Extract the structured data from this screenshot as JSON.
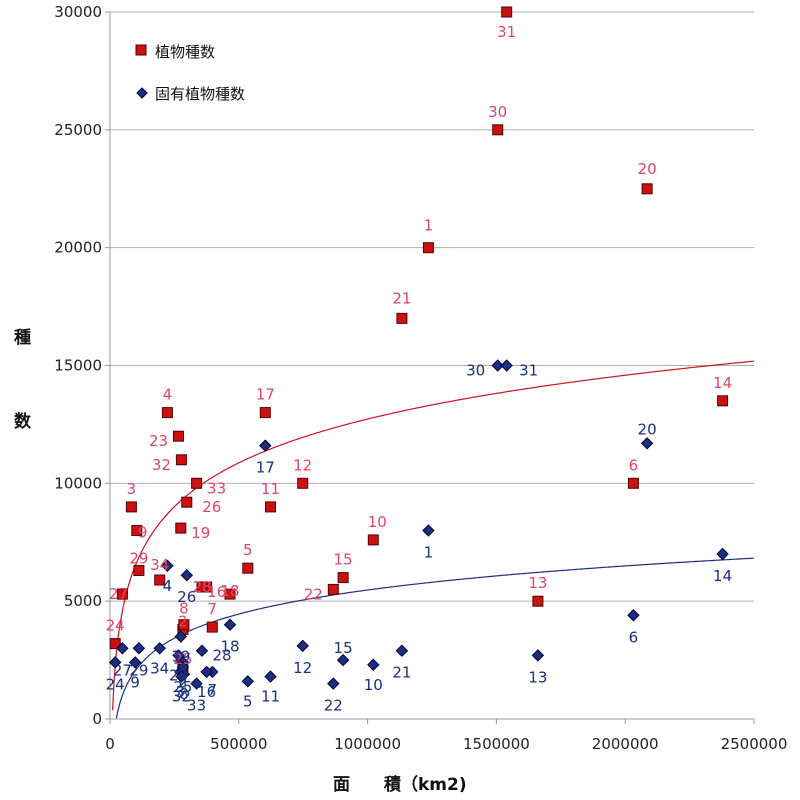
{
  "chart_data": {
    "type": "scatter",
    "xlabel": "面　　積（km2)",
    "ylabel": "種数",
    "xlim": [
      0,
      2500000
    ],
    "ylim": [
      0,
      30000
    ],
    "x_ticks": [
      0,
      500000,
      1000000,
      1500000,
      2000000,
      2500000
    ],
    "y_ticks": [
      0,
      5000,
      10000,
      15000,
      20000,
      25000,
      30000
    ],
    "x_tick_labels": [
      "0",
      "500000",
      "1000000",
      "1500000",
      "2000000",
      "2500000"
    ],
    "y_tick_labels": [
      "0",
      "5000",
      "10000",
      "15000",
      "20000",
      "25000",
      "30000"
    ],
    "grid": "horizontal",
    "legend_position": "top-left",
    "series": [
      {
        "name": "植物種数",
        "marker": "square",
        "color": "#cc1111",
        "label_color": "#e0456a",
        "points": [
          {
            "label": "1",
            "x": 1236000,
            "y": 20000
          },
          {
            "label": "2",
            "x": 283000,
            "y": 3800
          },
          {
            "label": "3",
            "x": 83000,
            "y": 9000
          },
          {
            "label": "4",
            "x": 223000,
            "y": 13000
          },
          {
            "label": "5",
            "x": 535000,
            "y": 6400
          },
          {
            "label": "6",
            "x": 2032000,
            "y": 10000
          },
          {
            "label": "7",
            "x": 397000,
            "y": 3900
          },
          {
            "label": "8",
            "x": 287000,
            "y": 4000
          },
          {
            "label": "9",
            "x": 104000,
            "y": 8000
          },
          {
            "label": "10",
            "x": 1022000,
            "y": 7600
          },
          {
            "label": "11",
            "x": 623000,
            "y": 9000
          },
          {
            "label": "12",
            "x": 748000,
            "y": 10000
          },
          {
            "label": "13",
            "x": 1661000,
            "y": 5000
          },
          {
            "label": "14",
            "x": 2378000,
            "y": 13500
          },
          {
            "label": "15",
            "x": 905000,
            "y": 6000
          },
          {
            "label": "16",
            "x": 375000,
            "y": 5600
          },
          {
            "label": "17",
            "x": 603000,
            "y": 13000
          },
          {
            "label": "18",
            "x": 466000,
            "y": 5300
          },
          {
            "label": "19",
            "x": 275000,
            "y": 8100
          },
          {
            "label": "20",
            "x": 2085000,
            "y": 22500
          },
          {
            "label": "21",
            "x": 1133000,
            "y": 17000
          },
          {
            "label": "22",
            "x": 867000,
            "y": 5500
          },
          {
            "label": "23",
            "x": 266000,
            "y": 12000
          },
          {
            "label": "24",
            "x": 20000,
            "y": 3200
          },
          {
            "label": "25",
            "x": 283000,
            "y": 2200
          },
          {
            "label": "26",
            "x": 298000,
            "y": 9200
          },
          {
            "label": "27",
            "x": 48000,
            "y": 5300
          },
          {
            "label": "28",
            "x": 357000,
            "y": 5600
          },
          {
            "label": "29",
            "x": 112000,
            "y": 6300
          },
          {
            "label": "30",
            "x": 1505000,
            "y": 25000
          },
          {
            "label": "31",
            "x": 1540000,
            "y": 30000
          },
          {
            "label": "32",
            "x": 277000,
            "y": 11000
          },
          {
            "label": "33",
            "x": 336000,
            "y": 10000
          },
          {
            "label": "34",
            "x": 193000,
            "y": 5900
          }
        ]
      },
      {
        "name": "固有植物種数",
        "marker": "diamond",
        "color": "#1a2f80",
        "label_color": "#1a2f80",
        "points": [
          {
            "label": "1",
            "x": 1236000,
            "y": 8000
          },
          {
            "label": "2",
            "x": 283000,
            "y": 2400
          },
          {
            "label": "3",
            "x": 273000,
            "y": 2000
          },
          {
            "label": "4",
            "x": 223000,
            "y": 6500
          },
          {
            "label": "5",
            "x": 535000,
            "y": 1600
          },
          {
            "label": "6",
            "x": 2032000,
            "y": 4400
          },
          {
            "label": "7",
            "x": 397000,
            "y": 2000
          },
          {
            "label": "8",
            "x": 287000,
            "y": 1900
          },
          {
            "label": "9",
            "x": 98000,
            "y": 2400
          },
          {
            "label": "10",
            "x": 1022000,
            "y": 2300
          },
          {
            "label": "11",
            "x": 623000,
            "y": 1800
          },
          {
            "label": "12",
            "x": 748000,
            "y": 3100
          },
          {
            "label": "13",
            "x": 1661000,
            "y": 2700
          },
          {
            "label": "14",
            "x": 2378000,
            "y": 7000
          },
          {
            "label": "15",
            "x": 905000,
            "y": 2500
          },
          {
            "label": "16",
            "x": 375000,
            "y": 2000
          },
          {
            "label": "17",
            "x": 603000,
            "y": 11600
          },
          {
            "label": "18",
            "x": 466000,
            "y": 4000
          },
          {
            "label": "19",
            "x": 275000,
            "y": 3500
          },
          {
            "label": "20",
            "x": 2085000,
            "y": 11700
          },
          {
            "label": "21",
            "x": 1133000,
            "y": 2900
          },
          {
            "label": "22",
            "x": 867000,
            "y": 1500
          },
          {
            "label": "23",
            "x": 266000,
            "y": 2700
          },
          {
            "label": "24",
            "x": 20000,
            "y": 2400
          },
          {
            "label": "25",
            "x": 283000,
            "y": 2200
          },
          {
            "label": "26",
            "x": 298000,
            "y": 6100
          },
          {
            "label": "27",
            "x": 48000,
            "y": 3000
          },
          {
            "label": "28",
            "x": 357000,
            "y": 2900
          },
          {
            "label": "29",
            "x": 112000,
            "y": 3000
          },
          {
            "label": "30",
            "x": 1505000,
            "y": 15000
          },
          {
            "label": "31",
            "x": 1540000,
            "y": 15000
          },
          {
            "label": "32",
            "x": 277000,
            "y": 1800
          },
          {
            "label": "33",
            "x": 336000,
            "y": 1500
          },
          {
            "label": "34",
            "x": 193000,
            "y": 3000
          }
        ]
      }
    ],
    "trendlines": [
      {
        "series": "植物種数",
        "kind": "logarithmic",
        "color": "#cc1122",
        "a": 2682,
        "b": -24325
      },
      {
        "series": "固有植物種数",
        "kind": "logarithmic",
        "color": "#1a2f80",
        "a": 1474,
        "b": -14890
      }
    ]
  }
}
